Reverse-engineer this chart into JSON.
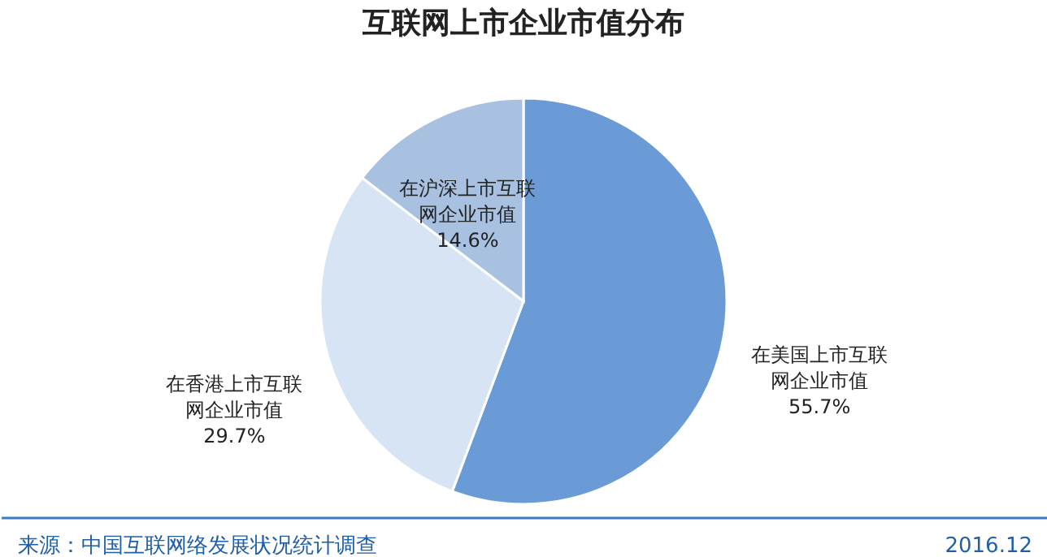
{
  "chart_data": {
    "type": "pie",
    "title": "互联网上市企业市值分布",
    "categories": [
      "在美国上市互联网企业市值",
      "在香港上市互联网企业市值",
      "在沪深上市互联网企业市值"
    ],
    "values": [
      55.7,
      29.7,
      14.6
    ],
    "colors": [
      "#6a9bd6",
      "#d7e4f4",
      "#a8c1e0"
    ],
    "value_labels": [
      "55.7%",
      "29.7%",
      "14.6%"
    ],
    "legend": false,
    "annotations": [
      "来源：中国互联网络发展状况统计调查",
      "2016.12"
    ]
  }
}
